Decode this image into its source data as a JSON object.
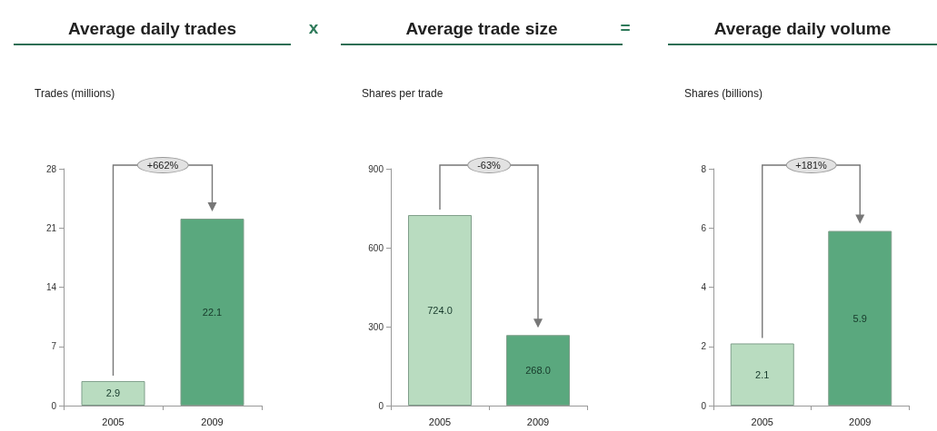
{
  "chart_data": [
    {
      "type": "bar",
      "title": "Average daily trades",
      "ylabel": "Trades (millions)",
      "categories": [
        "2005",
        "2009"
      ],
      "values": [
        2.9,
        22.1
      ],
      "colors": [
        "#b9dcc0",
        "#5aa87e"
      ],
      "value_labels": [
        "2.9",
        "22.1"
      ],
      "ylim": [
        0,
        28
      ],
      "yticks": [
        0,
        7,
        14,
        21,
        28
      ],
      "grid": false,
      "annotations": [
        "+662%",
        "x"
      ]
    },
    {
      "type": "bar",
      "title": "Average trade size",
      "ylabel": "Shares per trade",
      "categories": [
        "2005",
        "2009"
      ],
      "values": [
        724.0,
        268.0
      ],
      "colors": [
        "#b9dcc0",
        "#5aa87e"
      ],
      "value_labels": [
        "724.0",
        "268.0"
      ],
      "ylim": [
        0,
        900
      ],
      "yticks": [
        0,
        300,
        600,
        900
      ],
      "grid": false,
      "annotations": [
        "-63%",
        "="
      ]
    },
    {
      "type": "bar",
      "title": "Average daily volume",
      "ylabel": "Shares (billions)",
      "categories": [
        "2005",
        "2009"
      ],
      "values": [
        2.1,
        5.9
      ],
      "colors": [
        "#b9dcc0",
        "#5aa87e"
      ],
      "value_labels": [
        "2.1",
        "5.9"
      ],
      "ylim": [
        0,
        8
      ],
      "yticks": [
        0,
        2,
        4,
        6,
        8
      ],
      "grid": false,
      "annotations": [
        "+181%"
      ]
    }
  ]
}
